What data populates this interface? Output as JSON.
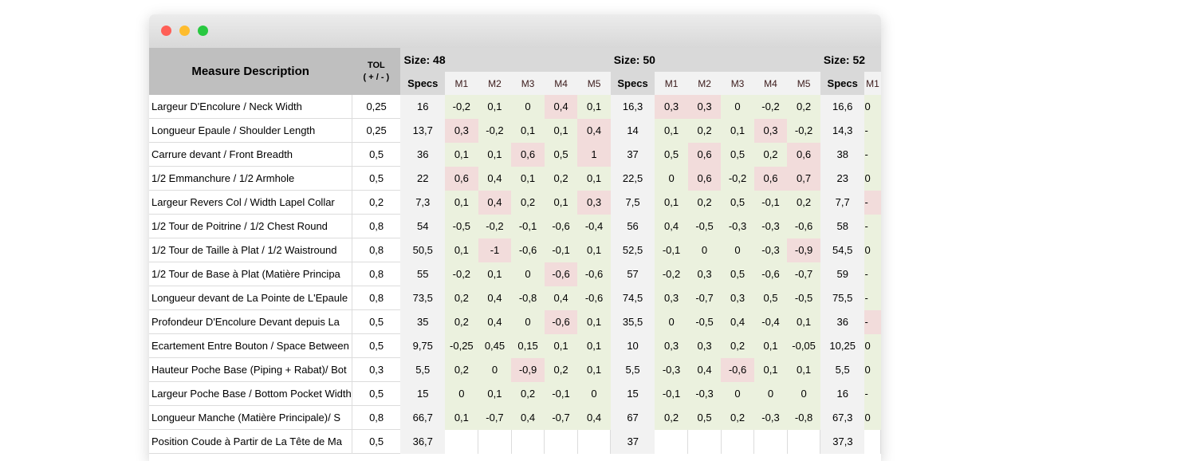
{
  "header": {
    "desc": "Measure Description",
    "tol_line1": "TOL",
    "tol_line2": "( + / - )",
    "specs": "Specs",
    "m_labels": [
      "M1",
      "M2",
      "M3",
      "M4",
      "M5"
    ]
  },
  "colors": {
    "in_tolerance": "#ebf1de",
    "out_of_tolerance": "#f2dcdb",
    "specs_bg": "#f2f2f2",
    "header_bg": "#bfbfbf"
  },
  "sizes": [
    "Size: 48",
    "Size: 50",
    "Size: 52"
  ],
  "rows": [
    {
      "desc": "Largeur D'Encolure / Neck Width",
      "tol": "0,25",
      "s": [
        {
          "specs": "16",
          "m": [
            "-0,2",
            "0,1",
            "0",
            "0,4",
            "0,1"
          ],
          "hi": [
            3
          ]
        },
        {
          "specs": "16,3",
          "m": [
            "0,3",
            "0,3",
            "0",
            "-0,2",
            "0,2"
          ],
          "hi": [
            0,
            1
          ]
        },
        {
          "specs": "16,6",
          "m": [
            "0"
          ],
          "hi": []
        }
      ]
    },
    {
      "desc": "Longueur Epaule / Shoulder Length",
      "tol": "0,25",
      "s": [
        {
          "specs": "13,7",
          "m": [
            "0,3",
            "-0,2",
            "0,1",
            "0,1",
            "0,4"
          ],
          "hi": [
            0,
            4
          ]
        },
        {
          "specs": "14",
          "m": [
            "0,1",
            "0,2",
            "0,1",
            "0,3",
            "-0,2"
          ],
          "hi": [
            3
          ]
        },
        {
          "specs": "14,3",
          "m": [
            "-"
          ],
          "hi": []
        }
      ]
    },
    {
      "desc": "Carrure devant / Front Breadth",
      "tol": "0,5",
      "s": [
        {
          "specs": "36",
          "m": [
            "0,1",
            "0,1",
            "0,6",
            "0,5",
            "1"
          ],
          "hi": [
            2,
            4
          ]
        },
        {
          "specs": "37",
          "m": [
            "0,5",
            "0,6",
            "0,5",
            "0,2",
            "0,6"
          ],
          "hi": [
            1,
            4
          ]
        },
        {
          "specs": "38",
          "m": [
            "-"
          ],
          "hi": []
        }
      ]
    },
    {
      "desc": "1/2 Emmanchure / 1/2 Armhole",
      "tol": "0,5",
      "s": [
        {
          "specs": "22",
          "m": [
            "0,6",
            "0,4",
            "0,1",
            "0,2",
            "0,1"
          ],
          "hi": [
            0
          ]
        },
        {
          "specs": "22,5",
          "m": [
            "0",
            "0,6",
            "-0,2",
            "0,6",
            "0,7"
          ],
          "hi": [
            1,
            3,
            4
          ]
        },
        {
          "specs": "23",
          "m": [
            "0"
          ],
          "hi": []
        }
      ]
    },
    {
      "desc": "Largeur Revers Col / Width Lapel Collar",
      "tol": "0,2",
      "s": [
        {
          "specs": "7,3",
          "m": [
            "0,1",
            "0,4",
            "0,2",
            "0,1",
            "0,3"
          ],
          "hi": [
            1,
            4
          ]
        },
        {
          "specs": "7,5",
          "m": [
            "0,1",
            "0,2",
            "0,5",
            "-0,1",
            "0,2"
          ],
          "hi": []
        },
        {
          "specs": "7,7",
          "m": [
            "-"
          ],
          "hi": [
            0
          ]
        }
      ]
    },
    {
      "desc": "1/2 Tour de Poitrine / 1/2 Chest Round",
      "tol": "0,8",
      "s": [
        {
          "specs": "54",
          "m": [
            "-0,5",
            "-0,2",
            "-0,1",
            "-0,6",
            "-0,4"
          ],
          "hi": []
        },
        {
          "specs": "56",
          "m": [
            "0,4",
            "-0,5",
            "-0,3",
            "-0,3",
            "-0,6"
          ],
          "hi": []
        },
        {
          "specs": "58",
          "m": [
            "-"
          ],
          "hi": []
        }
      ]
    },
    {
      "desc": "1/2 Tour de Taille à Plat / 1/2 Waistround",
      "tol": "0,8",
      "s": [
        {
          "specs": "50,5",
          "m": [
            "0,1",
            "-1",
            "-0,6",
            "-0,1",
            "0,1"
          ],
          "hi": [
            1
          ]
        },
        {
          "specs": "52,5",
          "m": [
            "-0,1",
            "0",
            "0",
            "-0,3",
            "-0,9"
          ],
          "hi": [
            4
          ]
        },
        {
          "specs": "54,5",
          "m": [
            "0"
          ],
          "hi": []
        }
      ]
    },
    {
      "desc": "1/2 Tour de Base à Plat (Matière Principa",
      "tol": "0,8",
      "s": [
        {
          "specs": "55",
          "m": [
            "-0,2",
            "0,1",
            "0",
            "-0,6",
            "-0,6"
          ],
          "hi": [
            3
          ]
        },
        {
          "specs": "57",
          "m": [
            "-0,2",
            "0,3",
            "0,5",
            "-0,6",
            "-0,7"
          ],
          "hi": []
        },
        {
          "specs": "59",
          "m": [
            "-"
          ],
          "hi": []
        }
      ]
    },
    {
      "desc": "Longueur devant de La Pointe de L'Epaule",
      "tol": "0,8",
      "s": [
        {
          "specs": "73,5",
          "m": [
            "0,2",
            "0,4",
            "-0,8",
            "0,4",
            "-0,6"
          ],
          "hi": []
        },
        {
          "specs": "74,5",
          "m": [
            "0,3",
            "-0,7",
            "0,3",
            "0,5",
            "-0,5"
          ],
          "hi": []
        },
        {
          "specs": "75,5",
          "m": [
            "-"
          ],
          "hi": []
        }
      ]
    },
    {
      "desc": "Profondeur D'Encolure Devant depuis La",
      "tol": "0,5",
      "s": [
        {
          "specs": "35",
          "m": [
            "0,2",
            "0,4",
            "0",
            "-0,6",
            "0,1"
          ],
          "hi": [
            3
          ]
        },
        {
          "specs": "35,5",
          "m": [
            "0",
            "-0,5",
            "0,4",
            "-0,4",
            "0,1"
          ],
          "hi": []
        },
        {
          "specs": "36",
          "m": [
            "-"
          ],
          "hi": [
            0
          ]
        }
      ]
    },
    {
      "desc": "Ecartement Entre Bouton / Space Between",
      "tol": "0,5",
      "s": [
        {
          "specs": "9,75",
          "m": [
            "-0,25",
            "0,45",
            "0,15",
            "0,1",
            "0,1"
          ],
          "hi": []
        },
        {
          "specs": "10",
          "m": [
            "0,3",
            "0,3",
            "0,2",
            "0,1",
            "-0,05"
          ],
          "hi": []
        },
        {
          "specs": "10,25",
          "m": [
            "0"
          ],
          "hi": []
        }
      ]
    },
    {
      "desc": "Hauteur Poche Base (Piping + Rabat)/ Bot",
      "tol": "0,3",
      "s": [
        {
          "specs": "5,5",
          "m": [
            "0,2",
            "0",
            "-0,9",
            "0,2",
            "0,1"
          ],
          "hi": [
            2
          ]
        },
        {
          "specs": "5,5",
          "m": [
            "-0,3",
            "0,4",
            "-0,6",
            "0,1",
            "0,1"
          ],
          "hi": [
            2
          ]
        },
        {
          "specs": "5,5",
          "m": [
            "0"
          ],
          "hi": []
        }
      ]
    },
    {
      "desc": "Largeur Poche Base / Bottom Pocket Width",
      "tol": "0,5",
      "s": [
        {
          "specs": "15",
          "m": [
            "0",
            "0,1",
            "0,2",
            "-0,1",
            "0"
          ],
          "hi": []
        },
        {
          "specs": "15",
          "m": [
            "-0,1",
            "-0,3",
            "0",
            "0",
            "0"
          ],
          "hi": []
        },
        {
          "specs": "16",
          "m": [
            "-"
          ],
          "hi": []
        }
      ]
    },
    {
      "desc": "Longueur Manche (Matière Principale)/ S",
      "tol": "0,8",
      "s": [
        {
          "specs": "66,7",
          "m": [
            "0,1",
            "-0,7",
            "0,4",
            "-0,7",
            "0,4"
          ],
          "hi": []
        },
        {
          "specs": "67",
          "m": [
            "0,2",
            "0,5",
            "0,2",
            "-0,3",
            "-0,8"
          ],
          "hi": []
        },
        {
          "specs": "67,3",
          "m": [
            "0"
          ],
          "hi": []
        }
      ]
    },
    {
      "desc": "Position Coude à Partir de La Tête de Ma",
      "tol": "0,5",
      "s": [
        {
          "specs": "36,7",
          "m": [],
          "hi": []
        },
        {
          "specs": "37",
          "m": [],
          "hi": []
        },
        {
          "specs": "37,3",
          "m": [],
          "hi": []
        }
      ]
    }
  ]
}
